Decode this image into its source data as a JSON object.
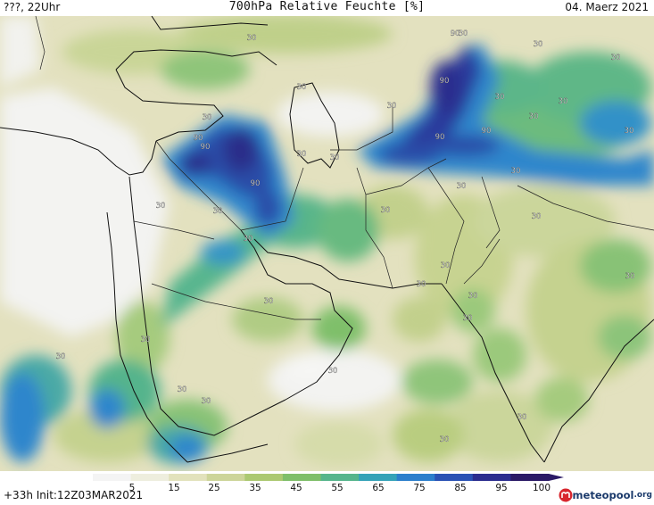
{
  "header": {
    "left": "???, 22Uhr",
    "title": "700hPa Relative Feuchte [%]",
    "right": "04. Maerz 2021"
  },
  "footer": {
    "left": "+33h  Init:12Z03MAR2021",
    "logo_text": "meteopool",
    "logo_tld": ".org"
  },
  "legend": {
    "variable_unit": "%",
    "ticks": [
      "5",
      "15",
      "25",
      "35",
      "45",
      "55",
      "65",
      "75",
      "85",
      "95",
      "100"
    ],
    "colors": [
      "#f4f4f4",
      "#eeeede",
      "#e2e2bc",
      "#cdd59a",
      "#acc972",
      "#7fbf6a",
      "#56b58c",
      "#35a3b8",
      "#2c7fcc",
      "#2a52b4",
      "#2b2d8e",
      "#2a1a66"
    ]
  },
  "map": {
    "contour_labels": [
      {
        "text": "30"
      },
      {
        "text": "30"
      },
      {
        "text": "30"
      },
      {
        "text": "30"
      },
      {
        "text": "30"
      },
      {
        "text": "90"
      },
      {
        "text": "90"
      },
      {
        "text": "90"
      },
      {
        "text": "90"
      },
      {
        "text": "90"
      },
      {
        "text": "90"
      },
      {
        "text": "90"
      },
      {
        "text": "30"
      },
      {
        "text": "30"
      },
      {
        "text": "30"
      },
      {
        "text": "30"
      },
      {
        "text": "30"
      },
      {
        "text": "30"
      },
      {
        "text": "30"
      },
      {
        "text": "30"
      },
      {
        "text": "30"
      },
      {
        "text": "30"
      },
      {
        "text": "30"
      },
      {
        "text": "30"
      },
      {
        "text": "30"
      },
      {
        "text": "30"
      },
      {
        "text": "30"
      },
      {
        "text": "30"
      },
      {
        "text": "30"
      },
      {
        "text": "30"
      },
      {
        "text": "30"
      },
      {
        "text": "30"
      },
      {
        "text": "30"
      },
      {
        "text": "30"
      },
      {
        "text": "30"
      },
      {
        "text": "30"
      },
      {
        "text": "30"
      },
      {
        "text": "30"
      },
      {
        "text": "30"
      },
      {
        "text": "30"
      }
    ]
  }
}
